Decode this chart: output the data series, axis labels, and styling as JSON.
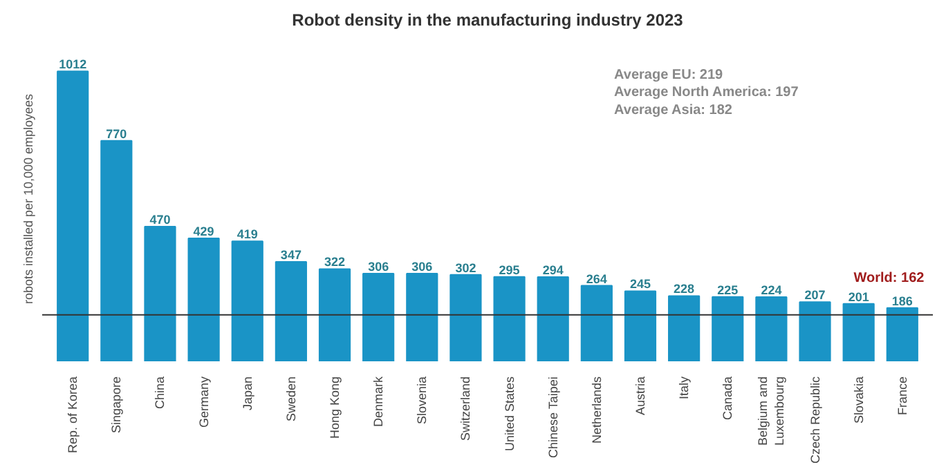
{
  "chart_data": {
    "type": "bar",
    "title": "Robot density in the manufacturing industry 2023",
    "ylabel": "robots installed per 10,000 employees",
    "categories": [
      "Rep. of Korea",
      "Singapore",
      "China",
      "Germany",
      "Japan",
      "Sweden",
      "Hong Kong",
      "Denmark",
      "Slovenia",
      "Switzerland",
      "United States",
      "Chinese Taipei",
      "Netherlands",
      "Austria",
      "Italy",
      "Canada",
      "Belgium and\nLuxembourg",
      "Czech Republic",
      "Slovakia",
      "France"
    ],
    "values": [
      1012,
      770,
      470,
      429,
      419,
      347,
      322,
      306,
      306,
      302,
      295,
      294,
      264,
      245,
      228,
      225,
      224,
      207,
      201,
      186
    ],
    "color": "#1a94c6",
    "data_labels": true,
    "tick_labels": "x",
    "grid": false,
    "ref_lines": [
      {
        "axis": "y",
        "value": 162,
        "label": "World: 162",
        "color": "#333333"
      }
    ],
    "annotations": [
      "Average EU: 219",
      "Average North America: 197",
      "Average Asia: 182"
    ]
  }
}
